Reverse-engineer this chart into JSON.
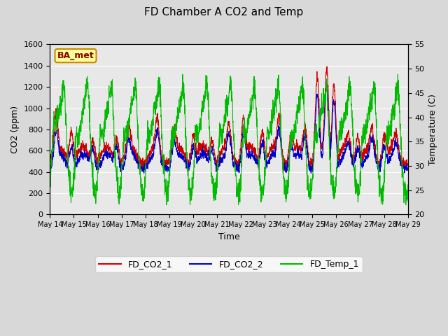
{
  "title": "FD Chamber A CO2 and Temp",
  "xlabel": "Time",
  "ylabel_left": "CO2 (ppm)",
  "ylabel_right": "Temperature (C)",
  "ylim_left": [
    0,
    1600
  ],
  "ylim_right": [
    20,
    55
  ],
  "yticks_left": [
    0,
    200,
    400,
    600,
    800,
    1000,
    1200,
    1400,
    1600
  ],
  "yticks_right": [
    20,
    25,
    30,
    35,
    40,
    45,
    50,
    55
  ],
  "xtick_labels": [
    "May 14",
    "May 15",
    "May 16",
    "May 17",
    "May 18",
    "May 19",
    "May 20",
    "May 21",
    "May 22",
    "May 23",
    "May 24",
    "May 25",
    "May 26",
    "May 27",
    "May 28",
    "May 29"
  ],
  "color_co2_1": "#cc0000",
  "color_co2_2": "#0000cc",
  "color_temp": "#00bb00",
  "legend_labels": [
    "FD_CO2_1",
    "FD_CO2_2",
    "FD_Temp_1"
  ],
  "annotation_text": "BA_met",
  "annotation_box_facecolor": "#ffff99",
  "annotation_box_edgecolor": "#cc8800",
  "annotation_text_color": "#880000",
  "plot_bg_color": "#e8e8e8",
  "fig_bg_color": "#d8d8d8",
  "grid_color": "#ffffff",
  "title_fontsize": 11,
  "axis_label_fontsize": 9,
  "tick_fontsize": 8,
  "legend_fontsize": 9
}
